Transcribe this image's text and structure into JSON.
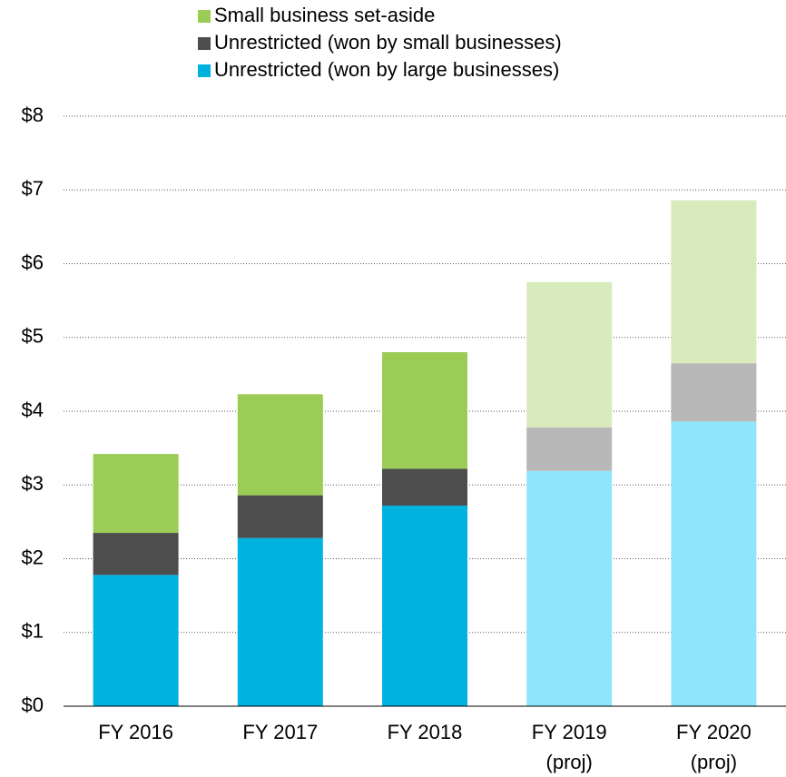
{
  "chart_data": {
    "type": "stacked_bar",
    "categories": [
      "FY 2016",
      "FY 2017",
      "FY 2018",
      "FY 2019\n(proj)",
      "FY 2020\n(proj)"
    ],
    "series": [
      {
        "name": "Unrestricted (won by large businesses)",
        "color": "#00b2e0",
        "colors": [
          "#00b2e0",
          "#00b2e0",
          "#00b2e0",
          "#8fe6fc",
          "#8fe6fc"
        ],
        "values": [
          1.78,
          2.28,
          2.72,
          3.19,
          3.86
        ]
      },
      {
        "name": "Unrestricted (won by small businesses)",
        "color": "#4d4d4d",
        "colors": [
          "#4d4d4d",
          "#4d4d4d",
          "#4d4d4d",
          "#b8b8b8",
          "#b8b8b8"
        ],
        "values": [
          0.57,
          0.58,
          0.5,
          0.59,
          0.79
        ]
      },
      {
        "name": "Small business set-aside",
        "color": "#9bcc55",
        "colors": [
          "#9bcc55",
          "#9bcc55",
          "#9bcc55",
          "#d8ebbc",
          "#d8ebbc"
        ],
        "values": [
          1.07,
          1.37,
          1.58,
          1.97,
          2.21
        ]
      }
    ],
    "ylim": [
      0,
      8
    ],
    "yticks": [
      {
        "value": 0,
        "label": "$0"
      },
      {
        "value": 1,
        "label": "$1"
      },
      {
        "value": 2,
        "label": "$2"
      },
      {
        "value": 3,
        "label": "$3"
      },
      {
        "value": 4,
        "label": "$4"
      },
      {
        "value": 5,
        "label": "$5"
      },
      {
        "value": 6,
        "label": "$6"
      },
      {
        "value": 7,
        "label": "$7"
      },
      {
        "value": 8,
        "label": "$8"
      }
    ],
    "grid": true
  }
}
